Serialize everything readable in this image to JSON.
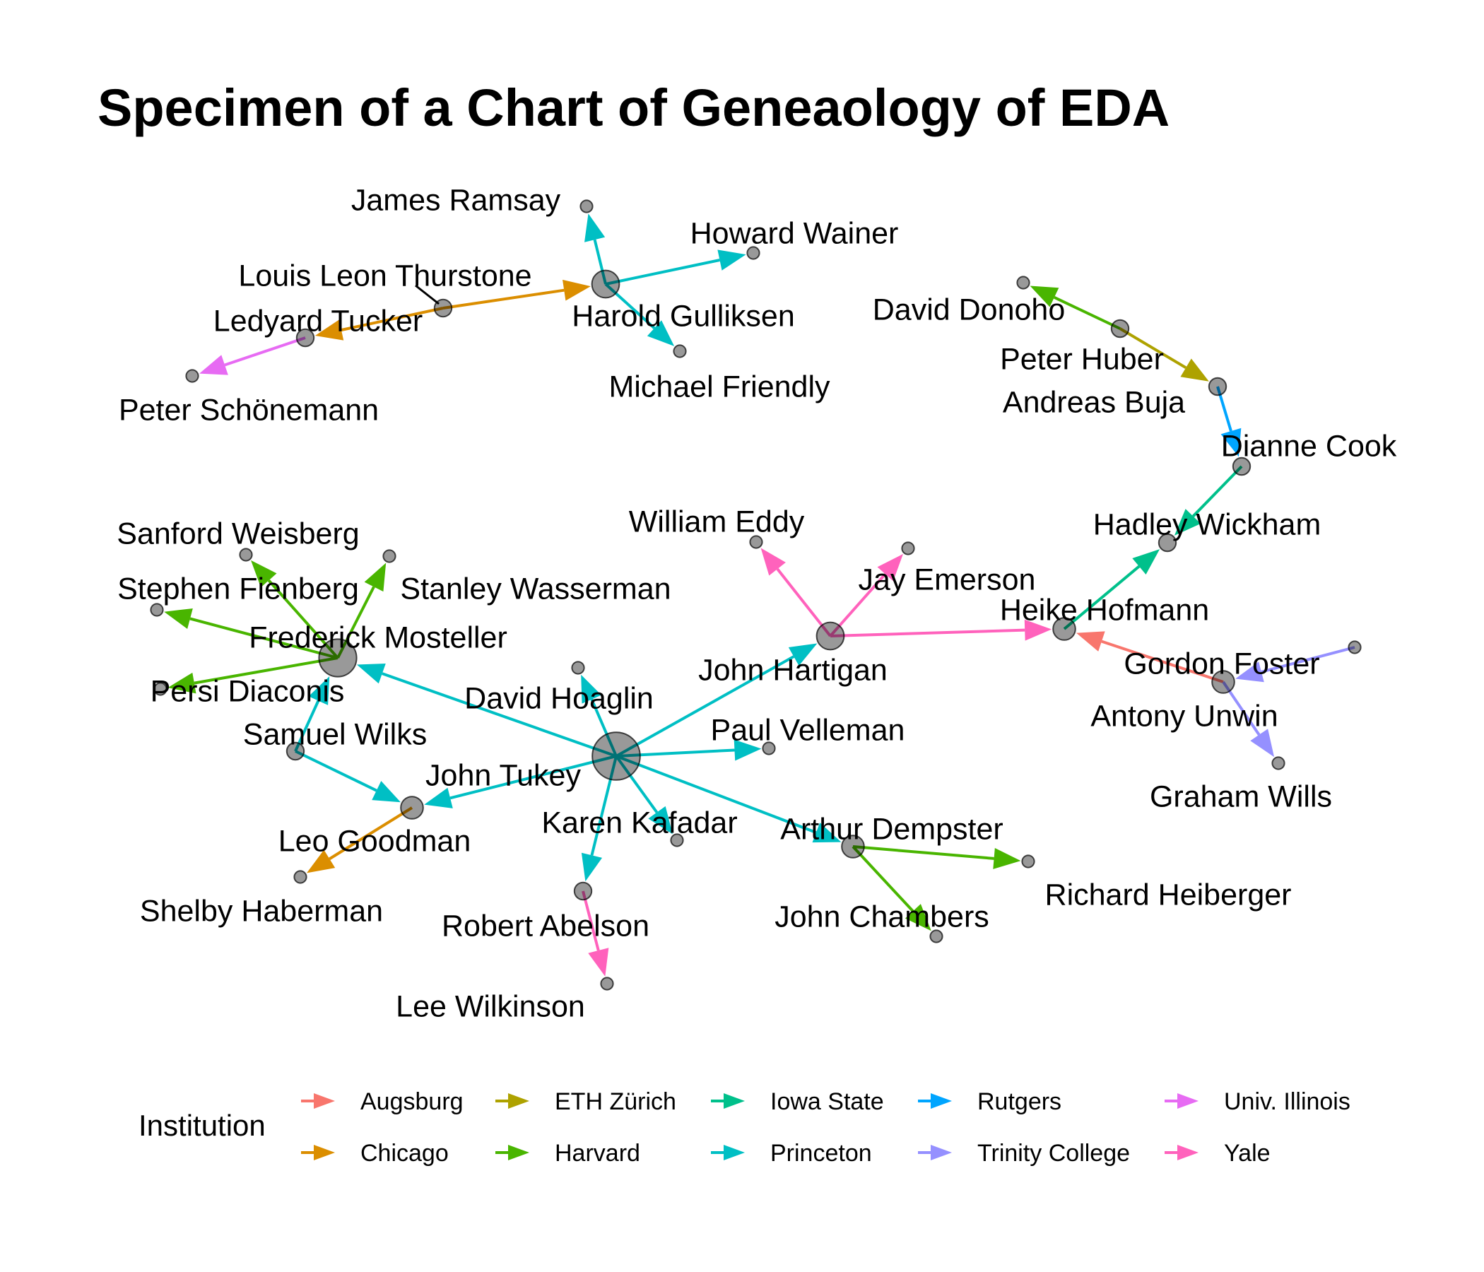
{
  "title": "Specimen of a Chart of Geneaology of EDA",
  "legend": {
    "title": "Institution",
    "items": [
      {
        "label": "Augsburg",
        "color": "#F8766D"
      },
      {
        "label": "Chicago",
        "color": "#DB8E00"
      },
      {
        "label": "ETH Zürich",
        "color": "#AEA200"
      },
      {
        "label": "Harvard",
        "color": "#49B500"
      },
      {
        "label": "Iowa State",
        "color": "#00C08B"
      },
      {
        "label": "Princeton",
        "color": "#00BFC4"
      },
      {
        "label": "Rutgers",
        "color": "#00A5FF"
      },
      {
        "label": "Trinity College",
        "color": "#9590FF"
      },
      {
        "label": "Univ. Illinois",
        "color": "#E76BF3"
      },
      {
        "label": "Yale",
        "color": "#FF62BC"
      }
    ]
  },
  "people": [
    "Louis Leon Thurstone",
    "Harold Gulliksen",
    "Ledyard Tucker",
    "Peter Schönemann",
    "James Ramsay",
    "Howard Wainer",
    "Michael Friendly",
    "John Tukey",
    "Frederick Mosteller",
    "Samuel Wilks",
    "Leo Goodman",
    "Shelby Haberman",
    "Sanford Weisberg",
    "Stanley Wasserman",
    "Stephen Fienberg",
    "Persi Diaconis",
    "David Hoaglin",
    "Paul Velleman",
    "Karen Kafadar",
    "Robert Abelson",
    "Lee Wilkinson",
    "Arthur Dempster",
    "Richard Heiberger",
    "John Chambers",
    "John Hartigan",
    "William Eddy",
    "Jay Emerson",
    "Heike Hofmann",
    "Hadley Wickham",
    "Dianne Cook",
    "Andreas Buja",
    "Peter Huber",
    "David Donoho",
    "Antony Unwin",
    "Gordon Foster",
    "Graham Wills"
  ],
  "advisor_links": [
    {
      "from": "Louis Leon Thurstone",
      "to": "Harold Gulliksen",
      "institution": "Chicago"
    },
    {
      "from": "Louis Leon Thurstone",
      "to": "Ledyard Tucker",
      "institution": "Chicago"
    },
    {
      "from": "Ledyard Tucker",
      "to": "Peter Schönemann",
      "institution": "Univ. Illinois"
    },
    {
      "from": "Harold Gulliksen",
      "to": "James Ramsay",
      "institution": "Princeton"
    },
    {
      "from": "Harold Gulliksen",
      "to": "Howard Wainer",
      "institution": "Princeton"
    },
    {
      "from": "Harold Gulliksen",
      "to": "Michael Friendly",
      "institution": "Princeton"
    },
    {
      "from": "John Tukey",
      "to": "Frederick Mosteller",
      "institution": "Princeton"
    },
    {
      "from": "John Tukey",
      "to": "Leo Goodman",
      "institution": "Princeton"
    },
    {
      "from": "John Tukey",
      "to": "David Hoaglin",
      "institution": "Princeton"
    },
    {
      "from": "John Tukey",
      "to": "Paul Velleman",
      "institution": "Princeton"
    },
    {
      "from": "John Tukey",
      "to": "Karen Kafadar",
      "institution": "Princeton"
    },
    {
      "from": "John Tukey",
      "to": "Robert Abelson",
      "institution": "Princeton"
    },
    {
      "from": "John Tukey",
      "to": "Arthur Dempster",
      "institution": "Princeton"
    },
    {
      "from": "John Tukey",
      "to": "John Hartigan",
      "institution": "Princeton"
    },
    {
      "from": "Samuel Wilks",
      "to": "Frederick Mosteller",
      "institution": "Princeton"
    },
    {
      "from": "Samuel Wilks",
      "to": "Leo Goodman",
      "institution": "Princeton"
    },
    {
      "from": "Leo Goodman",
      "to": "Shelby Haberman",
      "institution": "Chicago"
    },
    {
      "from": "Frederick Mosteller",
      "to": "Sanford Weisberg",
      "institution": "Harvard"
    },
    {
      "from": "Frederick Mosteller",
      "to": "Stanley Wasserman",
      "institution": "Harvard"
    },
    {
      "from": "Frederick Mosteller",
      "to": "Stephen Fienberg",
      "institution": "Harvard"
    },
    {
      "from": "Frederick Mosteller",
      "to": "Persi Diaconis",
      "institution": "Harvard"
    },
    {
      "from": "Robert Abelson",
      "to": "Lee Wilkinson",
      "institution": "Yale"
    },
    {
      "from": "Arthur Dempster",
      "to": "Richard Heiberger",
      "institution": "Harvard"
    },
    {
      "from": "Arthur Dempster",
      "to": "John Chambers",
      "institution": "Harvard"
    },
    {
      "from": "John Hartigan",
      "to": "William Eddy",
      "institution": "Yale"
    },
    {
      "from": "John Hartigan",
      "to": "Jay Emerson",
      "institution": "Yale"
    },
    {
      "from": "John Hartigan",
      "to": "Heike Hofmann",
      "institution": "Yale"
    },
    {
      "from": "Antony Unwin",
      "to": "Heike Hofmann",
      "institution": "Augsburg"
    },
    {
      "from": "Heike Hofmann",
      "to": "Hadley Wickham",
      "institution": "Iowa State"
    },
    {
      "from": "Dianne Cook",
      "to": "Hadley Wickham",
      "institution": "Iowa State"
    },
    {
      "from": "Andreas Buja",
      "to": "Dianne Cook",
      "institution": "Rutgers"
    },
    {
      "from": "Peter Huber",
      "to": "Andreas Buja",
      "institution": "ETH Zürich"
    },
    {
      "from": "Peter Huber",
      "to": "David Donoho",
      "institution": "Harvard"
    },
    {
      "from": "Gordon Foster",
      "to": "Antony Unwin",
      "institution": "Trinity College"
    },
    {
      "from": "Antony Unwin",
      "to": "Graham Wills",
      "institution": "Trinity College"
    }
  ]
}
